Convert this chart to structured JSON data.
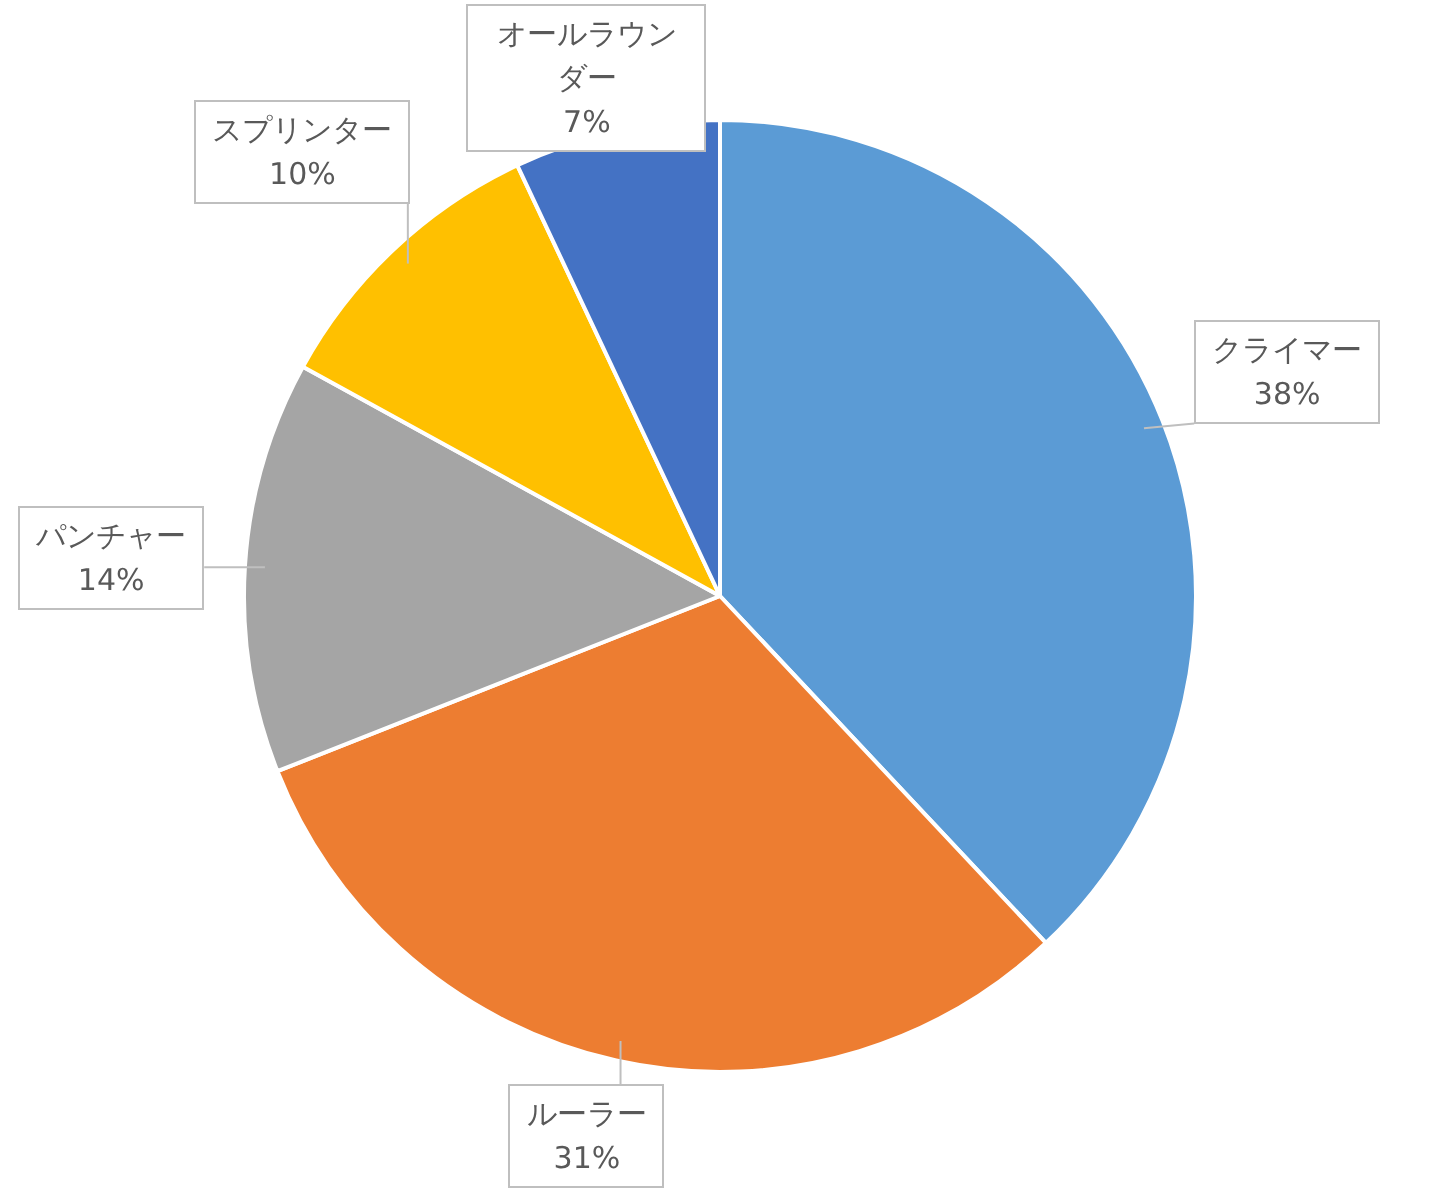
{
  "chart_data": {
    "type": "pie",
    "categories": [
      "クライマー",
      "ルーラー",
      "パンチャー",
      "スプリンター",
      "オールラウンダー"
    ],
    "values": [
      38,
      31,
      14,
      10,
      7
    ],
    "value_labels": [
      "38%",
      "31%",
      "14%",
      "10%",
      "7%"
    ],
    "colors": [
      "#5b9bd5",
      "#ed7d31",
      "#a5a5a5",
      "#ffc000",
      "#4472c4"
    ]
  }
}
